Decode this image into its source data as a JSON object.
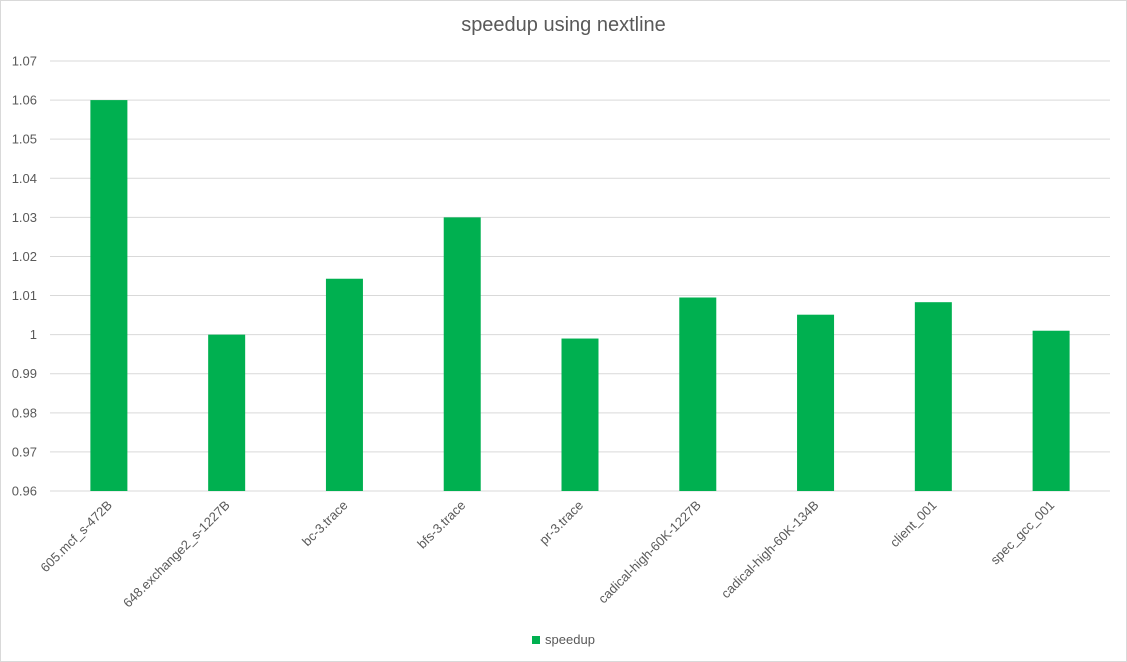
{
  "chart_data": {
    "type": "bar",
    "title": "speedup using nextline",
    "categories": [
      "605.mcf_s-472B",
      "648.exchange2_s-1227B",
      "bc-3.trace",
      "bfs-3.trace",
      "pr-3.trace",
      "cadical-high-60K-1227B",
      "cadical-high-60K-134B",
      "client_001",
      "spec_gcc_001"
    ],
    "series": [
      {
        "name": "speedup",
        "color": "#00b050",
        "values": [
          1.06,
          1.0,
          1.0143,
          1.03,
          0.999,
          1.0095,
          1.0051,
          1.0083,
          1.001
        ]
      }
    ],
    "ylim": [
      0.96,
      1.07
    ],
    "yticks": [
      "0.96",
      "0.97",
      "0.98",
      "0.99",
      "1",
      "1.01",
      "1.02",
      "1.03",
      "1.04",
      "1.05",
      "1.06",
      "1.07"
    ],
    "xlabel": "",
    "ylabel": "",
    "grid": true,
    "legend_position": "bottom"
  }
}
